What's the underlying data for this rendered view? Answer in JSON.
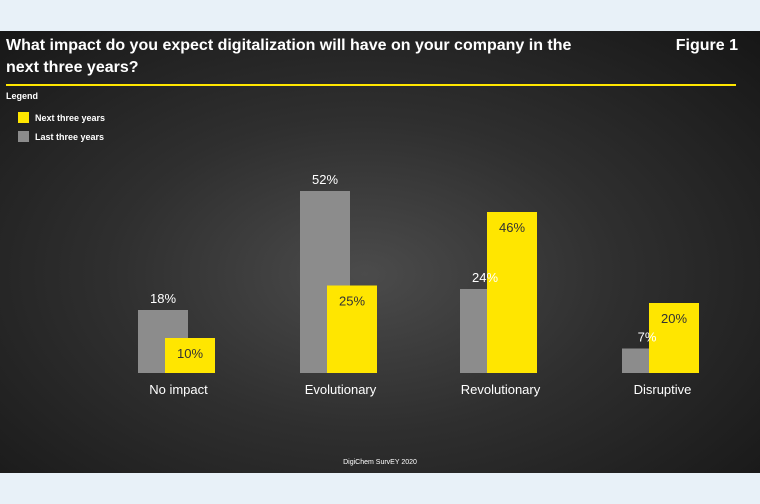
{
  "header": {
    "title": "What impact do you expect digitalization will have on your company in the\nnext three years?",
    "figure": "Figure 1"
  },
  "legend": {
    "title": "Legend",
    "items": [
      {
        "label": "Next three years",
        "color": "#ffe600"
      },
      {
        "label": "Last three years",
        "color": "#8c8c8c"
      }
    ]
  },
  "footer": "DigiChem SurvEY 2020",
  "chart_data": {
    "type": "bar",
    "categories": [
      "No impact",
      "Evolutionary",
      "Revolutionary",
      "Disruptive"
    ],
    "series": [
      {
        "name": "Last three years",
        "values": [
          18,
          52,
          24,
          7
        ],
        "color": "#8c8c8c"
      },
      {
        "name": "Next three years",
        "values": [
          10,
          25,
          46,
          20
        ],
        "color": "#ffe600"
      }
    ],
    "value_suffix": "%",
    "legend_position": "top-left"
  }
}
